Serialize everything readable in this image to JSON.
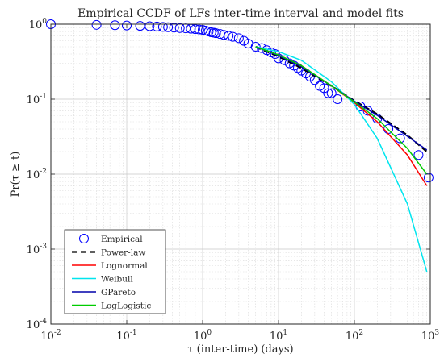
{
  "chart_data": {
    "type": "scatter",
    "title": "Empirical CCDF of LFs inter-time interval and model fits",
    "xlabel": "τ (inter-time) (days)",
    "ylabel": "Pr(τ ≥ t)",
    "xscale": "log",
    "yscale": "log",
    "xlim": [
      0.01,
      1000
    ],
    "ylim": [
      0.0001,
      1
    ],
    "grid": true,
    "minor_grid": true,
    "legend_position": "bottom-left",
    "x_tick_labels": [
      {
        "base": "10",
        "exp": "-2",
        "value": 0.01
      },
      {
        "base": "10",
        "exp": "-1",
        "value": 0.1
      },
      {
        "base": "10",
        "exp": "0",
        "value": 1
      },
      {
        "base": "10",
        "exp": "1",
        "value": 10
      },
      {
        "base": "10",
        "exp": "2",
        "value": 100
      },
      {
        "base": "10",
        "exp": "3",
        "value": 1000
      }
    ],
    "y_tick_labels": [
      {
        "base": "10",
        "exp": "-4",
        "value": 0.0001
      },
      {
        "base": "10",
        "exp": "-3",
        "value": 0.001
      },
      {
        "base": "10",
        "exp": "-2",
        "value": 0.01
      },
      {
        "base": "10",
        "exp": "-1",
        "value": 0.1
      },
      {
        "base": "10",
        "exp": "0",
        "value": 1
      }
    ],
    "series": [
      {
        "name": "Empirical",
        "kind": "markers",
        "marker": "open-circle",
        "color": "#0000ff",
        "x": [
          0.01,
          0.04,
          0.07,
          0.1,
          0.15,
          0.2,
          0.25,
          0.3,
          0.35,
          0.42,
          0.5,
          0.6,
          0.7,
          0.8,
          0.9,
          1.0,
          1.1,
          1.2,
          1.3,
          1.4,
          1.5,
          1.7,
          1.9,
          2.2,
          2.5,
          3.0,
          3.5,
          4.0,
          5.0,
          6.0,
          7.0,
          8.0,
          9.0,
          10.0,
          12.0,
          14.0,
          16.0,
          18.0,
          20.0,
          23.0,
          26.0,
          30.0,
          35.0,
          40.0,
          45.0,
          50.0,
          60.0,
          120.0,
          150.0,
          200.0,
          280.0,
          400.0,
          700.0,
          950.0
        ],
        "y": [
          1.0,
          0.98,
          0.97,
          0.96,
          0.95,
          0.94,
          0.93,
          0.92,
          0.91,
          0.9,
          0.89,
          0.88,
          0.87,
          0.86,
          0.85,
          0.84,
          0.82,
          0.8,
          0.78,
          0.77,
          0.76,
          0.74,
          0.72,
          0.7,
          0.68,
          0.65,
          0.6,
          0.55,
          0.5,
          0.48,
          0.45,
          0.42,
          0.4,
          0.35,
          0.33,
          0.3,
          0.28,
          0.26,
          0.24,
          0.22,
          0.2,
          0.18,
          0.15,
          0.14,
          0.12,
          0.12,
          0.1,
          0.08,
          0.07,
          0.055,
          0.04,
          0.03,
          0.018,
          0.009
        ]
      },
      {
        "name": "Power-law",
        "kind": "line",
        "style": "dashed",
        "color": "#000000",
        "x": [
          5,
          10,
          20,
          50,
          100,
          200,
          500,
          900
        ],
        "y": [
          0.5,
          0.37,
          0.26,
          0.15,
          0.095,
          0.063,
          0.033,
          0.02
        ]
      },
      {
        "name": "Lognormal",
        "kind": "line",
        "color": "#ff0000",
        "x": [
          5,
          10,
          20,
          50,
          100,
          200,
          500,
          900
        ],
        "y": [
          0.5,
          0.39,
          0.28,
          0.15,
          0.09,
          0.05,
          0.018,
          0.007
        ]
      },
      {
        "name": "Weibull",
        "kind": "line",
        "color": "#00e5ee",
        "x": [
          5,
          10,
          20,
          50,
          100,
          200,
          500,
          900
        ],
        "y": [
          0.5,
          0.43,
          0.33,
          0.17,
          0.085,
          0.03,
          0.004,
          0.0005
        ]
      },
      {
        "name": "GPareto",
        "kind": "line",
        "color": "#0000aa",
        "x": [
          5,
          10,
          20,
          50,
          100,
          200,
          500,
          900
        ],
        "y": [
          0.5,
          0.38,
          0.27,
          0.15,
          0.094,
          0.061,
          0.032,
          0.021
        ]
      },
      {
        "name": "LogLogistic",
        "kind": "line",
        "color": "#00cc00",
        "x": [
          5,
          10,
          20,
          50,
          100,
          200,
          500,
          900
        ],
        "y": [
          0.5,
          0.39,
          0.28,
          0.15,
          0.092,
          0.055,
          0.022,
          0.01
        ]
      }
    ]
  }
}
